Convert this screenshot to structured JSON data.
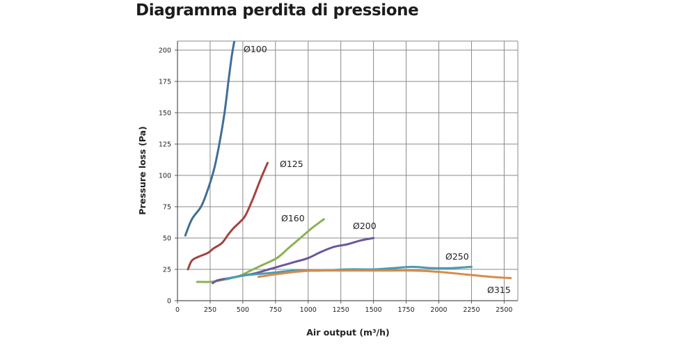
{
  "chart_data": {
    "type": "line",
    "title": "Diagramma perdita di pressione",
    "xlabel": "Air output (m³/h)",
    "ylabel": "Pressure loss (Pa)",
    "xlim": [
      0,
      2550
    ],
    "ylim": [
      0,
      210
    ],
    "x_ticks": [
      0,
      250,
      500,
      750,
      1000,
      1250,
      1500,
      1750,
      2000,
      2250,
      2500
    ],
    "y_ticks": [
      0,
      25,
      50,
      75,
      100,
      125,
      150,
      175,
      200
    ],
    "grid": true,
    "series": [
      {
        "name": "Ø100",
        "color": "#3f6e98",
        "x": [
          60,
          110,
          180,
          230,
          280,
          320,
          360,
          390,
          415,
          440
        ],
        "y": [
          52,
          65,
          75,
          88,
          105,
          125,
          150,
          175,
          195,
          210
        ]
      },
      {
        "name": "Ø125",
        "color": "#a4423f",
        "x": [
          80,
          110,
          160,
          230,
          280,
          340,
          390,
          430,
          480,
          520,
          580,
          640,
          690
        ],
        "y": [
          25,
          32,
          35,
          38,
          42,
          46,
          53,
          58,
          63,
          68,
          82,
          98,
          110
        ]
      },
      {
        "name": "Ø160",
        "color": "#8db054",
        "x": [
          150,
          250,
          320,
          400,
          480,
          560,
          640,
          760,
          850,
          940,
          1030,
          1120
        ],
        "y": [
          15,
          15,
          16,
          18,
          20,
          24,
          28,
          34,
          42,
          50,
          58,
          65
        ]
      },
      {
        "name": "Ø200",
        "color": "#6b579b",
        "x": [
          270,
          300,
          340,
          400,
          500,
          600,
          700,
          800,
          900,
          1000,
          1100,
          1200,
          1300,
          1400,
          1500
        ],
        "y": [
          14,
          16,
          17,
          18,
          20,
          22,
          25,
          28,
          31,
          34,
          39,
          43,
          45,
          48,
          50
        ]
      },
      {
        "name": "Ø250",
        "color": "#4b9bb0",
        "x": [
          370,
          500,
          700,
          900,
          1100,
          1300,
          1500,
          1650,
          1800,
          1950,
          2100,
          2250
        ],
        "y": [
          17,
          20,
          22,
          24,
          24,
          25,
          25,
          26,
          27,
          26,
          26,
          27
        ]
      },
      {
        "name": "Ø315",
        "color": "#d98b49",
        "x": [
          620,
          750,
          900,
          1050,
          1200,
          1400,
          1600,
          1800,
          2000,
          2200,
          2400,
          2550
        ],
        "y": [
          19,
          21,
          23,
          24,
          24,
          24,
          24,
          24,
          23,
          21,
          19,
          18
        ]
      }
    ]
  }
}
